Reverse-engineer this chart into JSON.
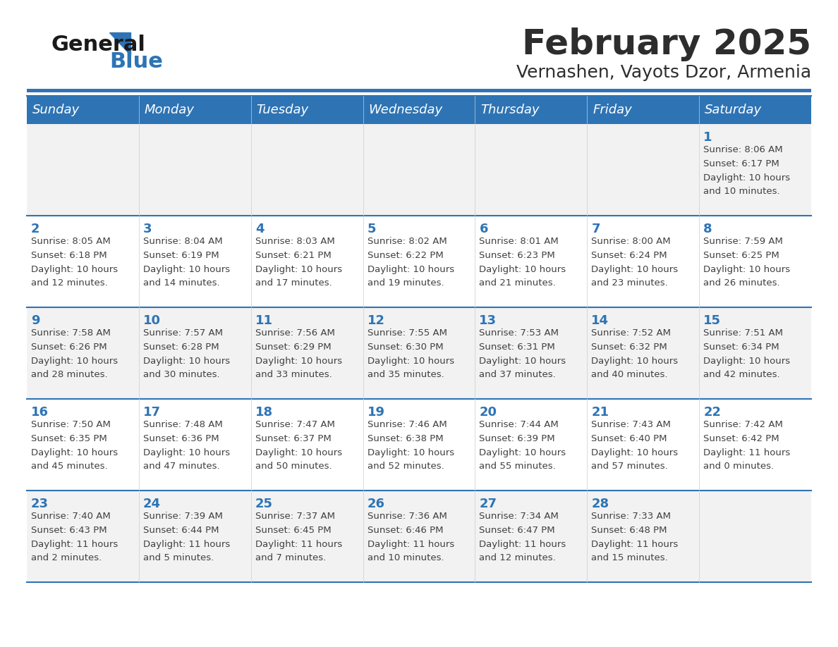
{
  "title": "February 2025",
  "subtitle": "Vernashen, Vayots Dzor, Armenia",
  "header_bg": "#2e74b5",
  "header_text": "#ffffff",
  "day_names": [
    "Sunday",
    "Monday",
    "Tuesday",
    "Wednesday",
    "Thursday",
    "Friday",
    "Saturday"
  ],
  "row_bg_light": "#f2f2f2",
  "row_bg_white": "#ffffff",
  "separator_color": "#2e74b5",
  "day_number_color": "#2e74b5",
  "cell_text_color": "#404040",
  "calendar": [
    [
      {
        "day": "",
        "sunrise": "",
        "sunset": "",
        "daylight": ""
      },
      {
        "day": "",
        "sunrise": "",
        "sunset": "",
        "daylight": ""
      },
      {
        "day": "",
        "sunrise": "",
        "sunset": "",
        "daylight": ""
      },
      {
        "day": "",
        "sunrise": "",
        "sunset": "",
        "daylight": ""
      },
      {
        "day": "",
        "sunrise": "",
        "sunset": "",
        "daylight": ""
      },
      {
        "day": "",
        "sunrise": "",
        "sunset": "",
        "daylight": ""
      },
      {
        "day": "1",
        "sunrise": "Sunrise: 8:06 AM",
        "sunset": "Sunset: 6:17 PM",
        "daylight": "Daylight: 10 hours\nand 10 minutes."
      }
    ],
    [
      {
        "day": "2",
        "sunrise": "Sunrise: 8:05 AM",
        "sunset": "Sunset: 6:18 PM",
        "daylight": "Daylight: 10 hours\nand 12 minutes."
      },
      {
        "day": "3",
        "sunrise": "Sunrise: 8:04 AM",
        "sunset": "Sunset: 6:19 PM",
        "daylight": "Daylight: 10 hours\nand 14 minutes."
      },
      {
        "day": "4",
        "sunrise": "Sunrise: 8:03 AM",
        "sunset": "Sunset: 6:21 PM",
        "daylight": "Daylight: 10 hours\nand 17 minutes."
      },
      {
        "day": "5",
        "sunrise": "Sunrise: 8:02 AM",
        "sunset": "Sunset: 6:22 PM",
        "daylight": "Daylight: 10 hours\nand 19 minutes."
      },
      {
        "day": "6",
        "sunrise": "Sunrise: 8:01 AM",
        "sunset": "Sunset: 6:23 PM",
        "daylight": "Daylight: 10 hours\nand 21 minutes."
      },
      {
        "day": "7",
        "sunrise": "Sunrise: 8:00 AM",
        "sunset": "Sunset: 6:24 PM",
        "daylight": "Daylight: 10 hours\nand 23 minutes."
      },
      {
        "day": "8",
        "sunrise": "Sunrise: 7:59 AM",
        "sunset": "Sunset: 6:25 PM",
        "daylight": "Daylight: 10 hours\nand 26 minutes."
      }
    ],
    [
      {
        "day": "9",
        "sunrise": "Sunrise: 7:58 AM",
        "sunset": "Sunset: 6:26 PM",
        "daylight": "Daylight: 10 hours\nand 28 minutes."
      },
      {
        "day": "10",
        "sunrise": "Sunrise: 7:57 AM",
        "sunset": "Sunset: 6:28 PM",
        "daylight": "Daylight: 10 hours\nand 30 minutes."
      },
      {
        "day": "11",
        "sunrise": "Sunrise: 7:56 AM",
        "sunset": "Sunset: 6:29 PM",
        "daylight": "Daylight: 10 hours\nand 33 minutes."
      },
      {
        "day": "12",
        "sunrise": "Sunrise: 7:55 AM",
        "sunset": "Sunset: 6:30 PM",
        "daylight": "Daylight: 10 hours\nand 35 minutes."
      },
      {
        "day": "13",
        "sunrise": "Sunrise: 7:53 AM",
        "sunset": "Sunset: 6:31 PM",
        "daylight": "Daylight: 10 hours\nand 37 minutes."
      },
      {
        "day": "14",
        "sunrise": "Sunrise: 7:52 AM",
        "sunset": "Sunset: 6:32 PM",
        "daylight": "Daylight: 10 hours\nand 40 minutes."
      },
      {
        "day": "15",
        "sunrise": "Sunrise: 7:51 AM",
        "sunset": "Sunset: 6:34 PM",
        "daylight": "Daylight: 10 hours\nand 42 minutes."
      }
    ],
    [
      {
        "day": "16",
        "sunrise": "Sunrise: 7:50 AM",
        "sunset": "Sunset: 6:35 PM",
        "daylight": "Daylight: 10 hours\nand 45 minutes."
      },
      {
        "day": "17",
        "sunrise": "Sunrise: 7:48 AM",
        "sunset": "Sunset: 6:36 PM",
        "daylight": "Daylight: 10 hours\nand 47 minutes."
      },
      {
        "day": "18",
        "sunrise": "Sunrise: 7:47 AM",
        "sunset": "Sunset: 6:37 PM",
        "daylight": "Daylight: 10 hours\nand 50 minutes."
      },
      {
        "day": "19",
        "sunrise": "Sunrise: 7:46 AM",
        "sunset": "Sunset: 6:38 PM",
        "daylight": "Daylight: 10 hours\nand 52 minutes."
      },
      {
        "day": "20",
        "sunrise": "Sunrise: 7:44 AM",
        "sunset": "Sunset: 6:39 PM",
        "daylight": "Daylight: 10 hours\nand 55 minutes."
      },
      {
        "day": "21",
        "sunrise": "Sunrise: 7:43 AM",
        "sunset": "Sunset: 6:40 PM",
        "daylight": "Daylight: 10 hours\nand 57 minutes."
      },
      {
        "day": "22",
        "sunrise": "Sunrise: 7:42 AM",
        "sunset": "Sunset: 6:42 PM",
        "daylight": "Daylight: 11 hours\nand 0 minutes."
      }
    ],
    [
      {
        "day": "23",
        "sunrise": "Sunrise: 7:40 AM",
        "sunset": "Sunset: 6:43 PM",
        "daylight": "Daylight: 11 hours\nand 2 minutes."
      },
      {
        "day": "24",
        "sunrise": "Sunrise: 7:39 AM",
        "sunset": "Sunset: 6:44 PM",
        "daylight": "Daylight: 11 hours\nand 5 minutes."
      },
      {
        "day": "25",
        "sunrise": "Sunrise: 7:37 AM",
        "sunset": "Sunset: 6:45 PM",
        "daylight": "Daylight: 11 hours\nand 7 minutes."
      },
      {
        "day": "26",
        "sunrise": "Sunrise: 7:36 AM",
        "sunset": "Sunset: 6:46 PM",
        "daylight": "Daylight: 11 hours\nand 10 minutes."
      },
      {
        "day": "27",
        "sunrise": "Sunrise: 7:34 AM",
        "sunset": "Sunset: 6:47 PM",
        "daylight": "Daylight: 11 hours\nand 12 minutes."
      },
      {
        "day": "28",
        "sunrise": "Sunrise: 7:33 AM",
        "sunset": "Sunset: 6:48 PM",
        "daylight": "Daylight: 11 hours\nand 15 minutes."
      },
      {
        "day": "",
        "sunrise": "",
        "sunset": "",
        "daylight": ""
      }
    ]
  ]
}
